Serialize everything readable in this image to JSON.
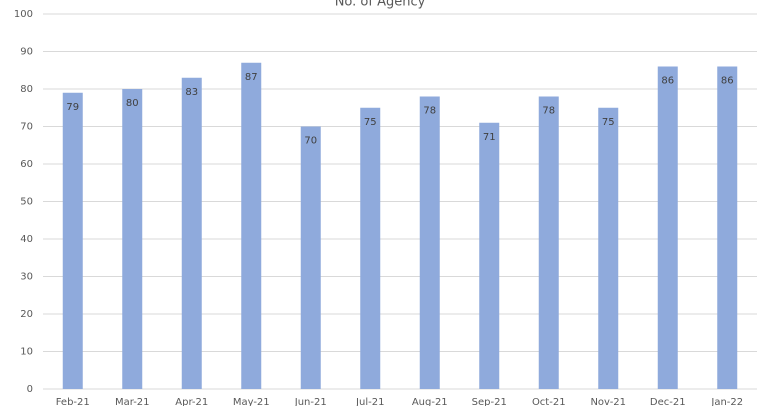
{
  "chart_data": {
    "type": "bar",
    "title": "No. of Agency",
    "categories": [
      "Feb-21",
      "Mar-21",
      "Apr-21",
      "May-21",
      "Jun-21",
      "Jul-21",
      "Aug-21",
      "Sep-21",
      "Oct-21",
      "Nov-21",
      "Dec-21",
      "Jan-22"
    ],
    "values": [
      79,
      80,
      83,
      87,
      70,
      75,
      78,
      71,
      78,
      75,
      86,
      86
    ],
    "color": "#8faadc",
    "ylim": [
      0,
      100
    ],
    "yticks": [
      0,
      10,
      20,
      30,
      40,
      50,
      60,
      70,
      80,
      90,
      100
    ],
    "grid": true
  }
}
